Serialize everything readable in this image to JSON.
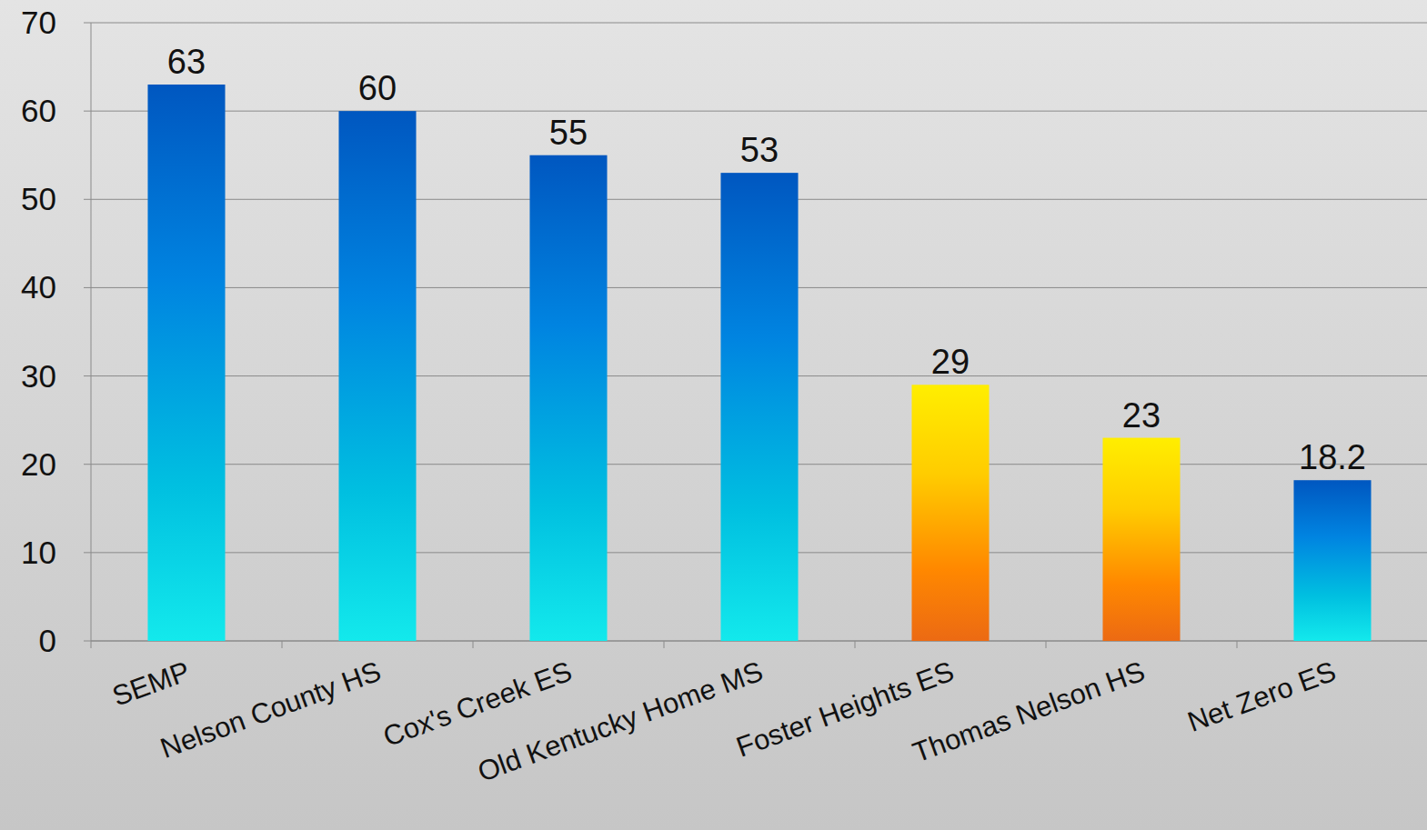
{
  "chart_data": {
    "type": "bar",
    "categories": [
      "SEMP",
      "Nelson County HS",
      "Cox's Creek ES",
      "Old Kentucky Home MS",
      "Foster Heights ES",
      "Thomas Nelson HS",
      "Net Zero ES"
    ],
    "values": [
      63,
      60,
      55,
      53,
      29,
      23,
      18.2
    ],
    "colors": [
      "#0057c0",
      "#0057c0",
      "#0057c0",
      "#0057c0",
      "#ffee00",
      "#ffee00",
      "#0057c0"
    ],
    "ylim": [
      0,
      70
    ],
    "yticks": [
      0,
      10,
      20,
      30,
      40,
      50,
      60,
      70
    ],
    "grid": true,
    "data_labels": true
  }
}
